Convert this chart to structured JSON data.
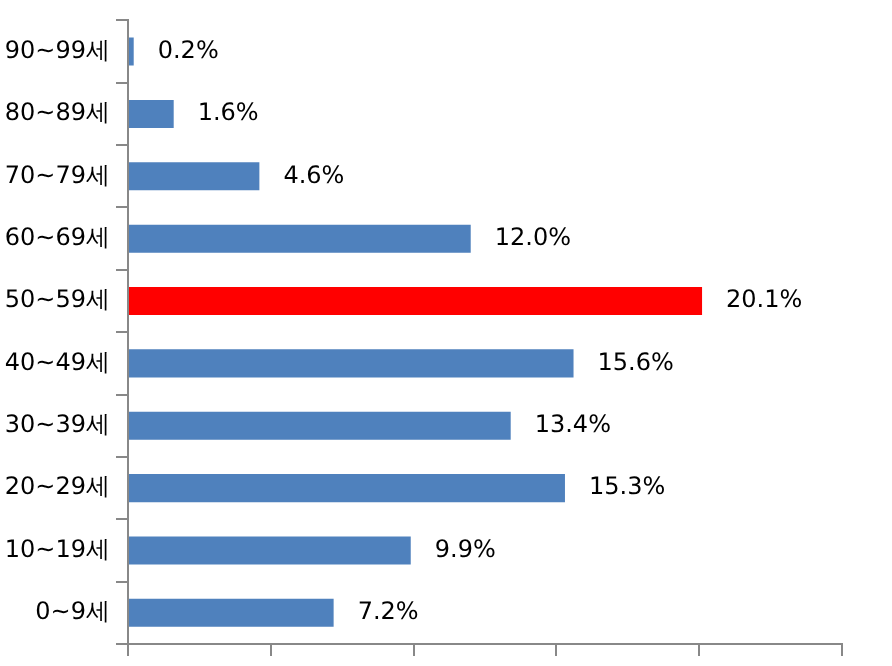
{
  "chart_data": {
    "type": "bar",
    "orientation": "horizontal",
    "categories": [
      "90~99세",
      "80~89세",
      "70~79세",
      "60~69세",
      "50~59세",
      "40~49세",
      "30~39세",
      "20~29세",
      "10~19세",
      "0~9세"
    ],
    "values": [
      0.2,
      1.6,
      4.6,
      12.0,
      20.1,
      15.6,
      13.4,
      15.3,
      9.9,
      7.2
    ],
    "colors": [
      "#4f81bd",
      "#4f81bd",
      "#4f81bd",
      "#4f81bd",
      "#ff0000",
      "#4f81bd",
      "#4f81bd",
      "#4f81bd",
      "#4f81bd",
      "#4f81bd"
    ],
    "value_labels": [
      "0.2%",
      "1.6%",
      "4.6%",
      "12.0%",
      "20.1%",
      "15.6%",
      "13.4%",
      "15.3%",
      "9.9%",
      "7.2%"
    ],
    "xlim": [
      0,
      25
    ],
    "xticks": [
      {
        "value": 0,
        "label": null
      },
      {
        "value": 5,
        "label": null
      },
      {
        "value": 10,
        "label": null
      },
      {
        "value": 15,
        "label": null
      },
      {
        "value": 20,
        "label": null
      },
      {
        "value": 25,
        "label": null
      }
    ],
    "tick_labels": "y",
    "grid": false
  }
}
